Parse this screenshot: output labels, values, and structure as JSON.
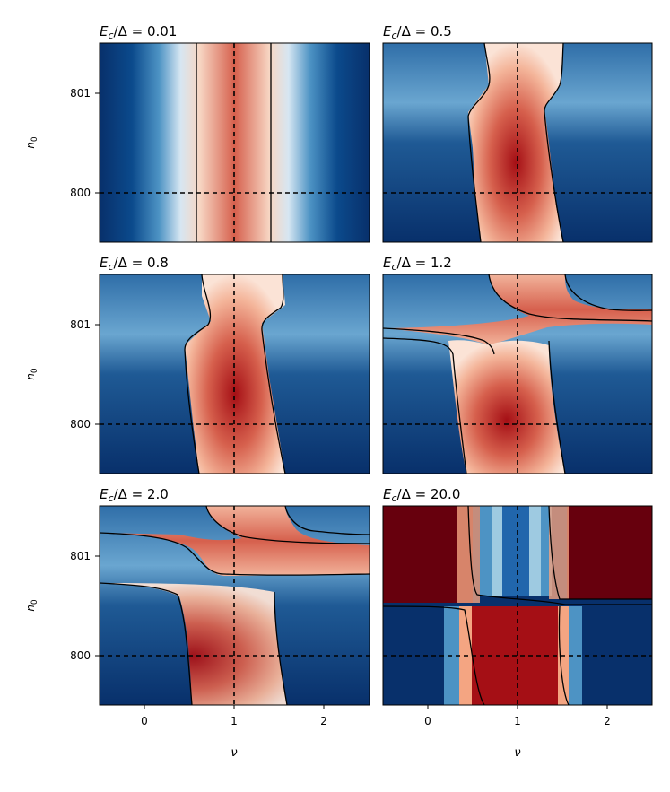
{
  "chart_data": [
    {
      "type": "heatmap",
      "title": "E_c/Δ = 0.01",
      "title_main": "E",
      "title_sub": "c",
      "title_rest": "/Δ = 0.01",
      "xlabel": "",
      "ylabel": "n",
      "ylabel_sub": "0",
      "xlim": [
        -0.5,
        2.5
      ],
      "ylim": [
        799.5,
        801.5
      ],
      "xticks": [],
      "yticks": [
        "801",
        "800"
      ],
      "colormap": "RdBu_r",
      "dashed_lines": {
        "x": 1,
        "y": 800
      }
    },
    {
      "type": "heatmap",
      "title": "E_c/Δ = 0.5",
      "title_main": "E",
      "title_sub": "c",
      "title_rest": "/Δ = 0.5",
      "xlabel": "",
      "ylabel": "",
      "xlim": [
        -0.5,
        2.5
      ],
      "ylim": [
        799.5,
        801.5
      ],
      "xticks": [],
      "yticks": [],
      "colormap": "RdBu_r",
      "dashed_lines": {
        "x": 1,
        "y": 800
      }
    },
    {
      "type": "heatmap",
      "title": "E_c/Δ = 0.8",
      "title_main": "E",
      "title_sub": "c",
      "title_rest": "/Δ = 0.8",
      "xlabel": "",
      "ylabel": "n",
      "ylabel_sub": "0",
      "xlim": [
        -0.5,
        2.5
      ],
      "ylim": [
        799.5,
        801.5
      ],
      "xticks": [],
      "yticks": [
        "801",
        "800"
      ],
      "colormap": "RdBu_r",
      "dashed_lines": {
        "x": 1,
        "y": 800
      }
    },
    {
      "type": "heatmap",
      "title": "E_c/Δ = 1.2",
      "title_main": "E",
      "title_sub": "c",
      "title_rest": "/Δ = 1.2",
      "xlabel": "",
      "ylabel": "",
      "xlim": [
        -0.5,
        2.5
      ],
      "ylim": [
        799.5,
        801.5
      ],
      "xticks": [],
      "yticks": [],
      "colormap": "RdBu_r",
      "dashed_lines": {
        "x": 1,
        "y": 800
      }
    },
    {
      "type": "heatmap",
      "title": "E_c/Δ = 2.0",
      "title_main": "E",
      "title_sub": "c",
      "title_rest": "/Δ = 2.0",
      "xlabel": "ν",
      "ylabel": "n",
      "ylabel_sub": "0",
      "xlim": [
        -0.5,
        2.5
      ],
      "ylim": [
        799.5,
        801.5
      ],
      "xticks": [
        "0",
        "1",
        "2"
      ],
      "yticks": [
        "801",
        "800"
      ],
      "colormap": "RdBu_r",
      "dashed_lines": {
        "x": 1,
        "y": 800
      }
    },
    {
      "type": "heatmap",
      "title": "E_c/Δ = 20.0",
      "title_main": "E",
      "title_sub": "c",
      "title_rest": "/Δ = 20.0",
      "xlabel": "ν",
      "ylabel": "",
      "xlim": [
        -0.5,
        2.5
      ],
      "ylim": [
        799.5,
        801.5
      ],
      "xticks": [
        "0",
        "1",
        "2"
      ],
      "yticks": [],
      "colormap": "RdBu_r",
      "dashed_lines": {
        "x": 1,
        "y": 800
      }
    }
  ]
}
